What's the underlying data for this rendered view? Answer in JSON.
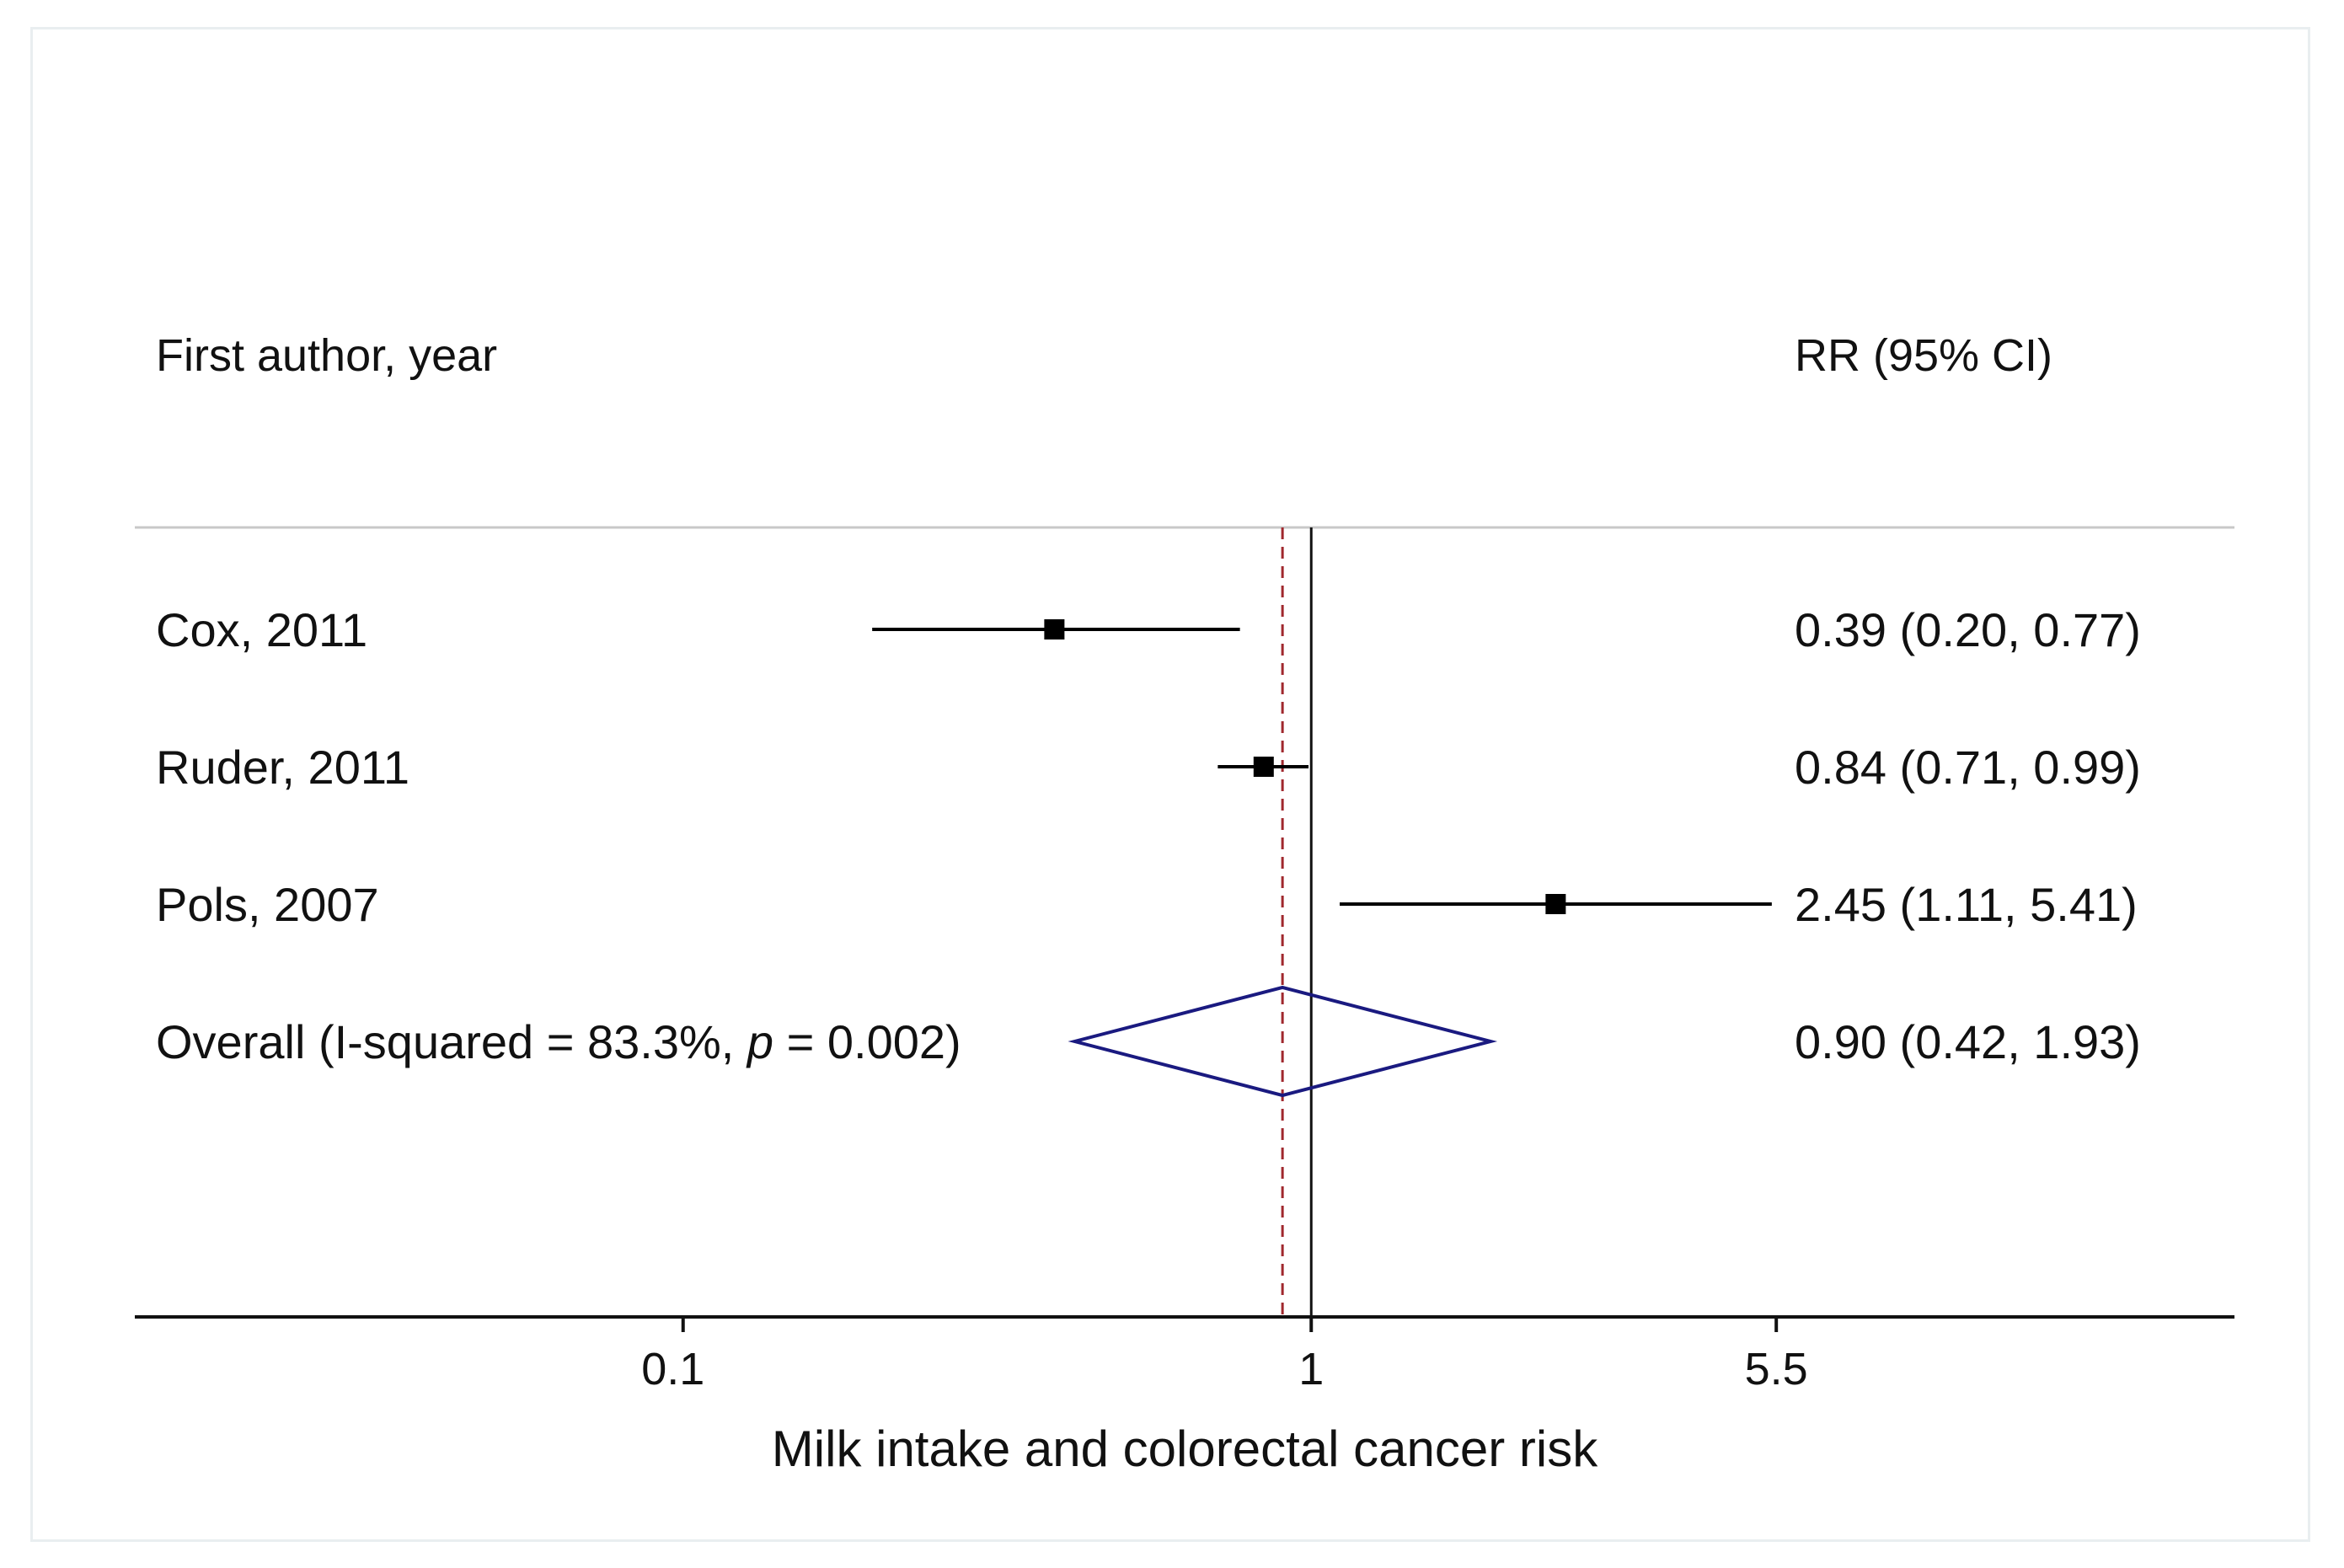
{
  "chart_data": {
    "type": "forest",
    "xscale": "log",
    "xlim": [
      0.0134,
      29.5
    ],
    "xticks": [
      0.1,
      1,
      5.5
    ],
    "xtick_labels": [
      "0.1",
      "1",
      "5.5"
    ],
    "xlabel": "Milk intake and colorectal cancer risk",
    "reference_line": 1,
    "pooled_line": 0.9,
    "headers": {
      "study": "First author, year",
      "estimate": "RR (95% CI)"
    },
    "studies": [
      {
        "label": "Cox, 2011",
        "rr": 0.39,
        "lo": 0.2,
        "hi": 0.77,
        "text": "0.39 (0.20, 0.77)"
      },
      {
        "label": "Ruder, 2011",
        "rr": 0.84,
        "lo": 0.71,
        "hi": 0.99,
        "text": "0.84 (0.71, 0.99)"
      },
      {
        "label": "Pols, 2007",
        "rr": 2.45,
        "lo": 1.11,
        "hi": 5.41,
        "text": "2.45 (1.11, 5.41)"
      }
    ],
    "overall": {
      "label_prefix": "Overall  (I-squared = 83.3%, ",
      "label_p": "p",
      "label_suffix": " = 0.002)",
      "rr": 0.9,
      "lo": 0.42,
      "hi": 1.93,
      "text": "0.90 (0.42, 1.93)"
    },
    "colors": {
      "marker": "#000000",
      "diamond": "#1a1a80",
      "pooled_line": "#a0282d",
      "axis": "#111111",
      "header_rule": "#c8c8c8"
    }
  }
}
